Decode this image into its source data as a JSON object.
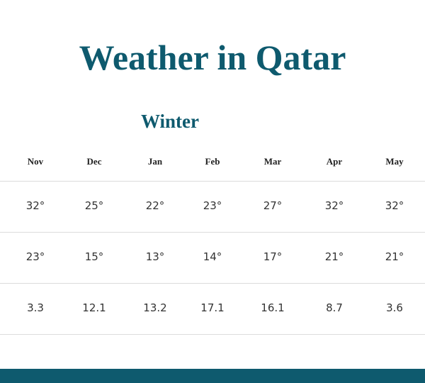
{
  "header": {
    "title": "Weather in Qatar"
  },
  "section": {
    "title": "Winter"
  },
  "table": {
    "columns": [
      "Nov",
      "Dec",
      "Jan",
      "Feb",
      "Mar",
      "Apr",
      "May"
    ],
    "rows": [
      [
        "32°",
        "25°",
        "22°",
        "23°",
        "27°",
        "32°",
        "32°"
      ],
      [
        "23°",
        "15°",
        "13°",
        "14°",
        "17°",
        "21°",
        "21°"
      ],
      [
        "3.3",
        "12.1",
        "13.2",
        "17.1",
        "16.1",
        "8.7",
        "3.6"
      ]
    ]
  }
}
